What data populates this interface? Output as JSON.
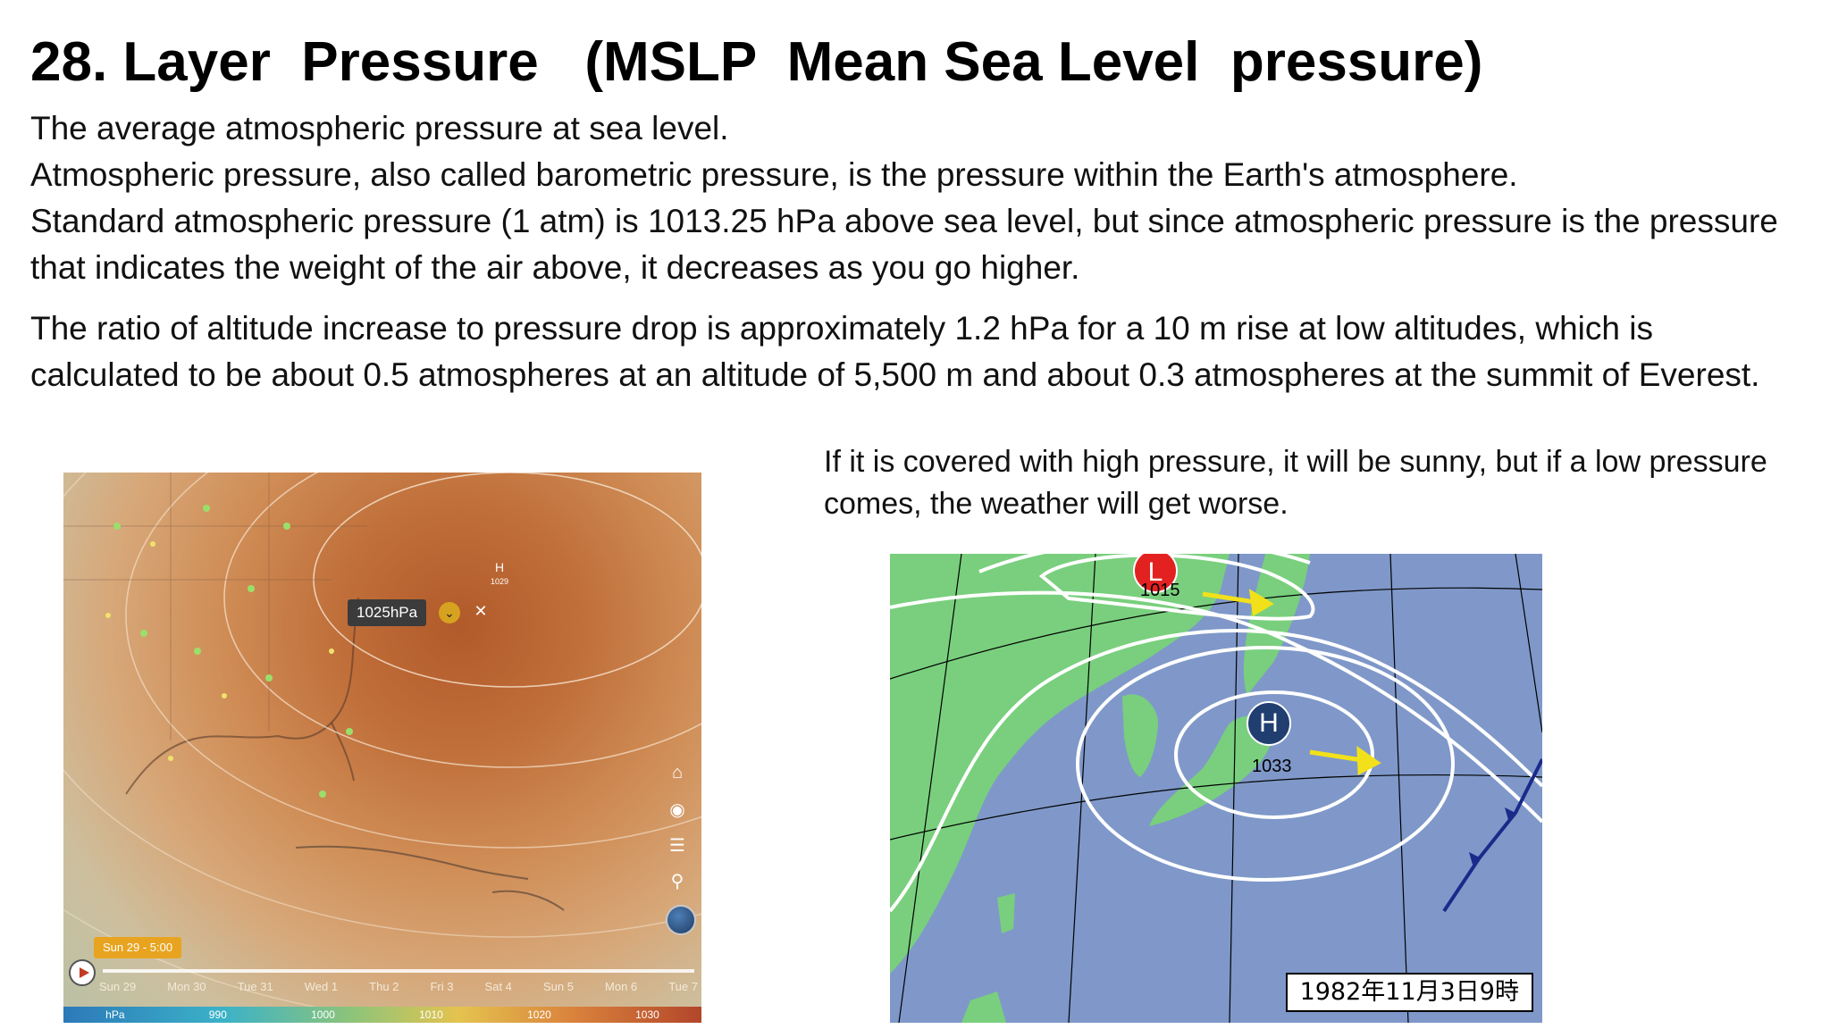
{
  "title": "28. Layer  Pressure   (MSLP  Mean Sea Level  pressure)",
  "paragraphs": {
    "p1_l1": "The average atmospheric pressure at sea level.",
    "p1_l2": "Atmospheric pressure, also called barometric pressure, is the pressure within the Earth's atmosphere.",
    "p1_l3": "Standard atmospheric pressure (1 atm) is 1013.25 hPa above sea level, but since atmospheric pressure is the pressure that indicates the weight of the air above, it decreases as you go higher.",
    "p2": "The ratio of altitude increase to pressure drop is approximately 1.2 hPa for a 10 m rise at low altitudes, which is calculated to be about 0.5 atmospheres at an altitude of 5,500 m and about 0.3 atmospheres at the summit of Everest."
  },
  "caption": "If it is covered with high pressure, it will be sunny, but if a low pressure comes, the weather will get worse.",
  "left_map": {
    "pressure_label": "1025hPa",
    "high_label": "H",
    "high_value": "1029",
    "time_label": "Sun 29 - 5:00",
    "days": [
      "Sun 29",
      "Mon 30",
      "Tue 31",
      "Wed 1",
      "Thu 2",
      "Fri 3",
      "Sat 4",
      "Sun 5",
      "Mon 6",
      "Tue 7"
    ],
    "scale": [
      "hPa",
      "990",
      "1000",
      "1010",
      "1020",
      "1030"
    ],
    "icons": [
      "home-icon",
      "location-icon",
      "menu-icon",
      "search-icon"
    ]
  },
  "right_map": {
    "low_label": "L",
    "low_value": "1015",
    "high_label": "H",
    "high_value": "1033",
    "date_stamp": "1982年11月3日9時",
    "colors": {
      "land": "#79cf7d",
      "sea": "#7f98c9",
      "low": "#e32121",
      "high": "#213e70",
      "arrow": "#f2e11a"
    }
  }
}
